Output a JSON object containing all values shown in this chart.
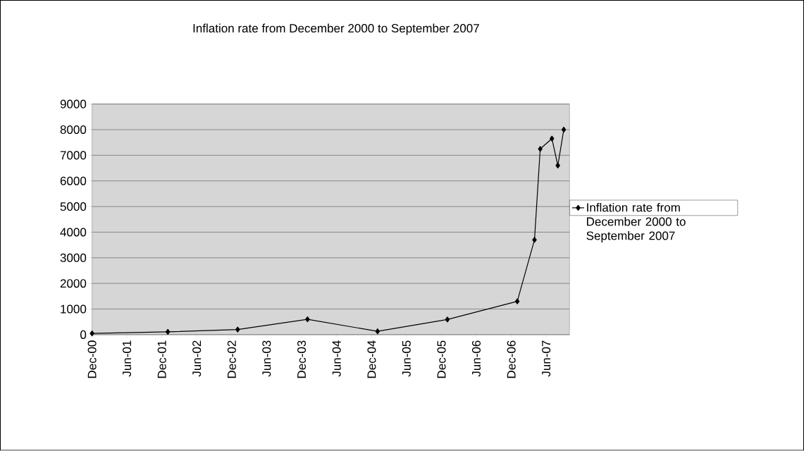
{
  "chart_data": {
    "type": "line",
    "title": "Inflation rate from December 2000 to September 2007",
    "x": [
      "2000-12",
      "2002-01",
      "2003-01",
      "2004-01",
      "2005-01",
      "2006-01",
      "2007-01",
      "2007-04",
      "2007-05",
      "2007-07",
      "2007-08",
      "2007-09"
    ],
    "series": [
      {
        "name": "Inflation rate from December 2000 to September 2007",
        "color": "#000000",
        "values": [
          50,
          110,
          200,
          600,
          130,
          590,
          1300,
          3700,
          7250,
          7650,
          6600,
          8000
        ]
      }
    ],
    "xlim": [
      "2000-12",
      "2007-10"
    ],
    "xticks": [
      {
        "value": "2000-12",
        "label": "Dec-00"
      },
      {
        "value": "2001-06",
        "label": "Jun-01"
      },
      {
        "value": "2001-12",
        "label": "Dec-01"
      },
      {
        "value": "2002-06",
        "label": "Jun-02"
      },
      {
        "value": "2002-12",
        "label": "Dec-02"
      },
      {
        "value": "2003-06",
        "label": "Jun-03"
      },
      {
        "value": "2003-12",
        "label": "Dec-03"
      },
      {
        "value": "2004-06",
        "label": "Jun-04"
      },
      {
        "value": "2004-12",
        "label": "Dec-04"
      },
      {
        "value": "2005-06",
        "label": "Jun-05"
      },
      {
        "value": "2005-12",
        "label": "Dec-05"
      },
      {
        "value": "2006-06",
        "label": "Jun-06"
      },
      {
        "value": "2006-12",
        "label": "Dec-06"
      },
      {
        "value": "2007-06",
        "label": "Jun-07"
      }
    ],
    "ylim": [
      0,
      9000
    ],
    "yticks": [
      0,
      1000,
      2000,
      3000,
      4000,
      5000,
      6000,
      7000,
      8000,
      9000
    ],
    "grid": "y",
    "legend": "right",
    "marker": "diamond",
    "line_style": "solid"
  }
}
